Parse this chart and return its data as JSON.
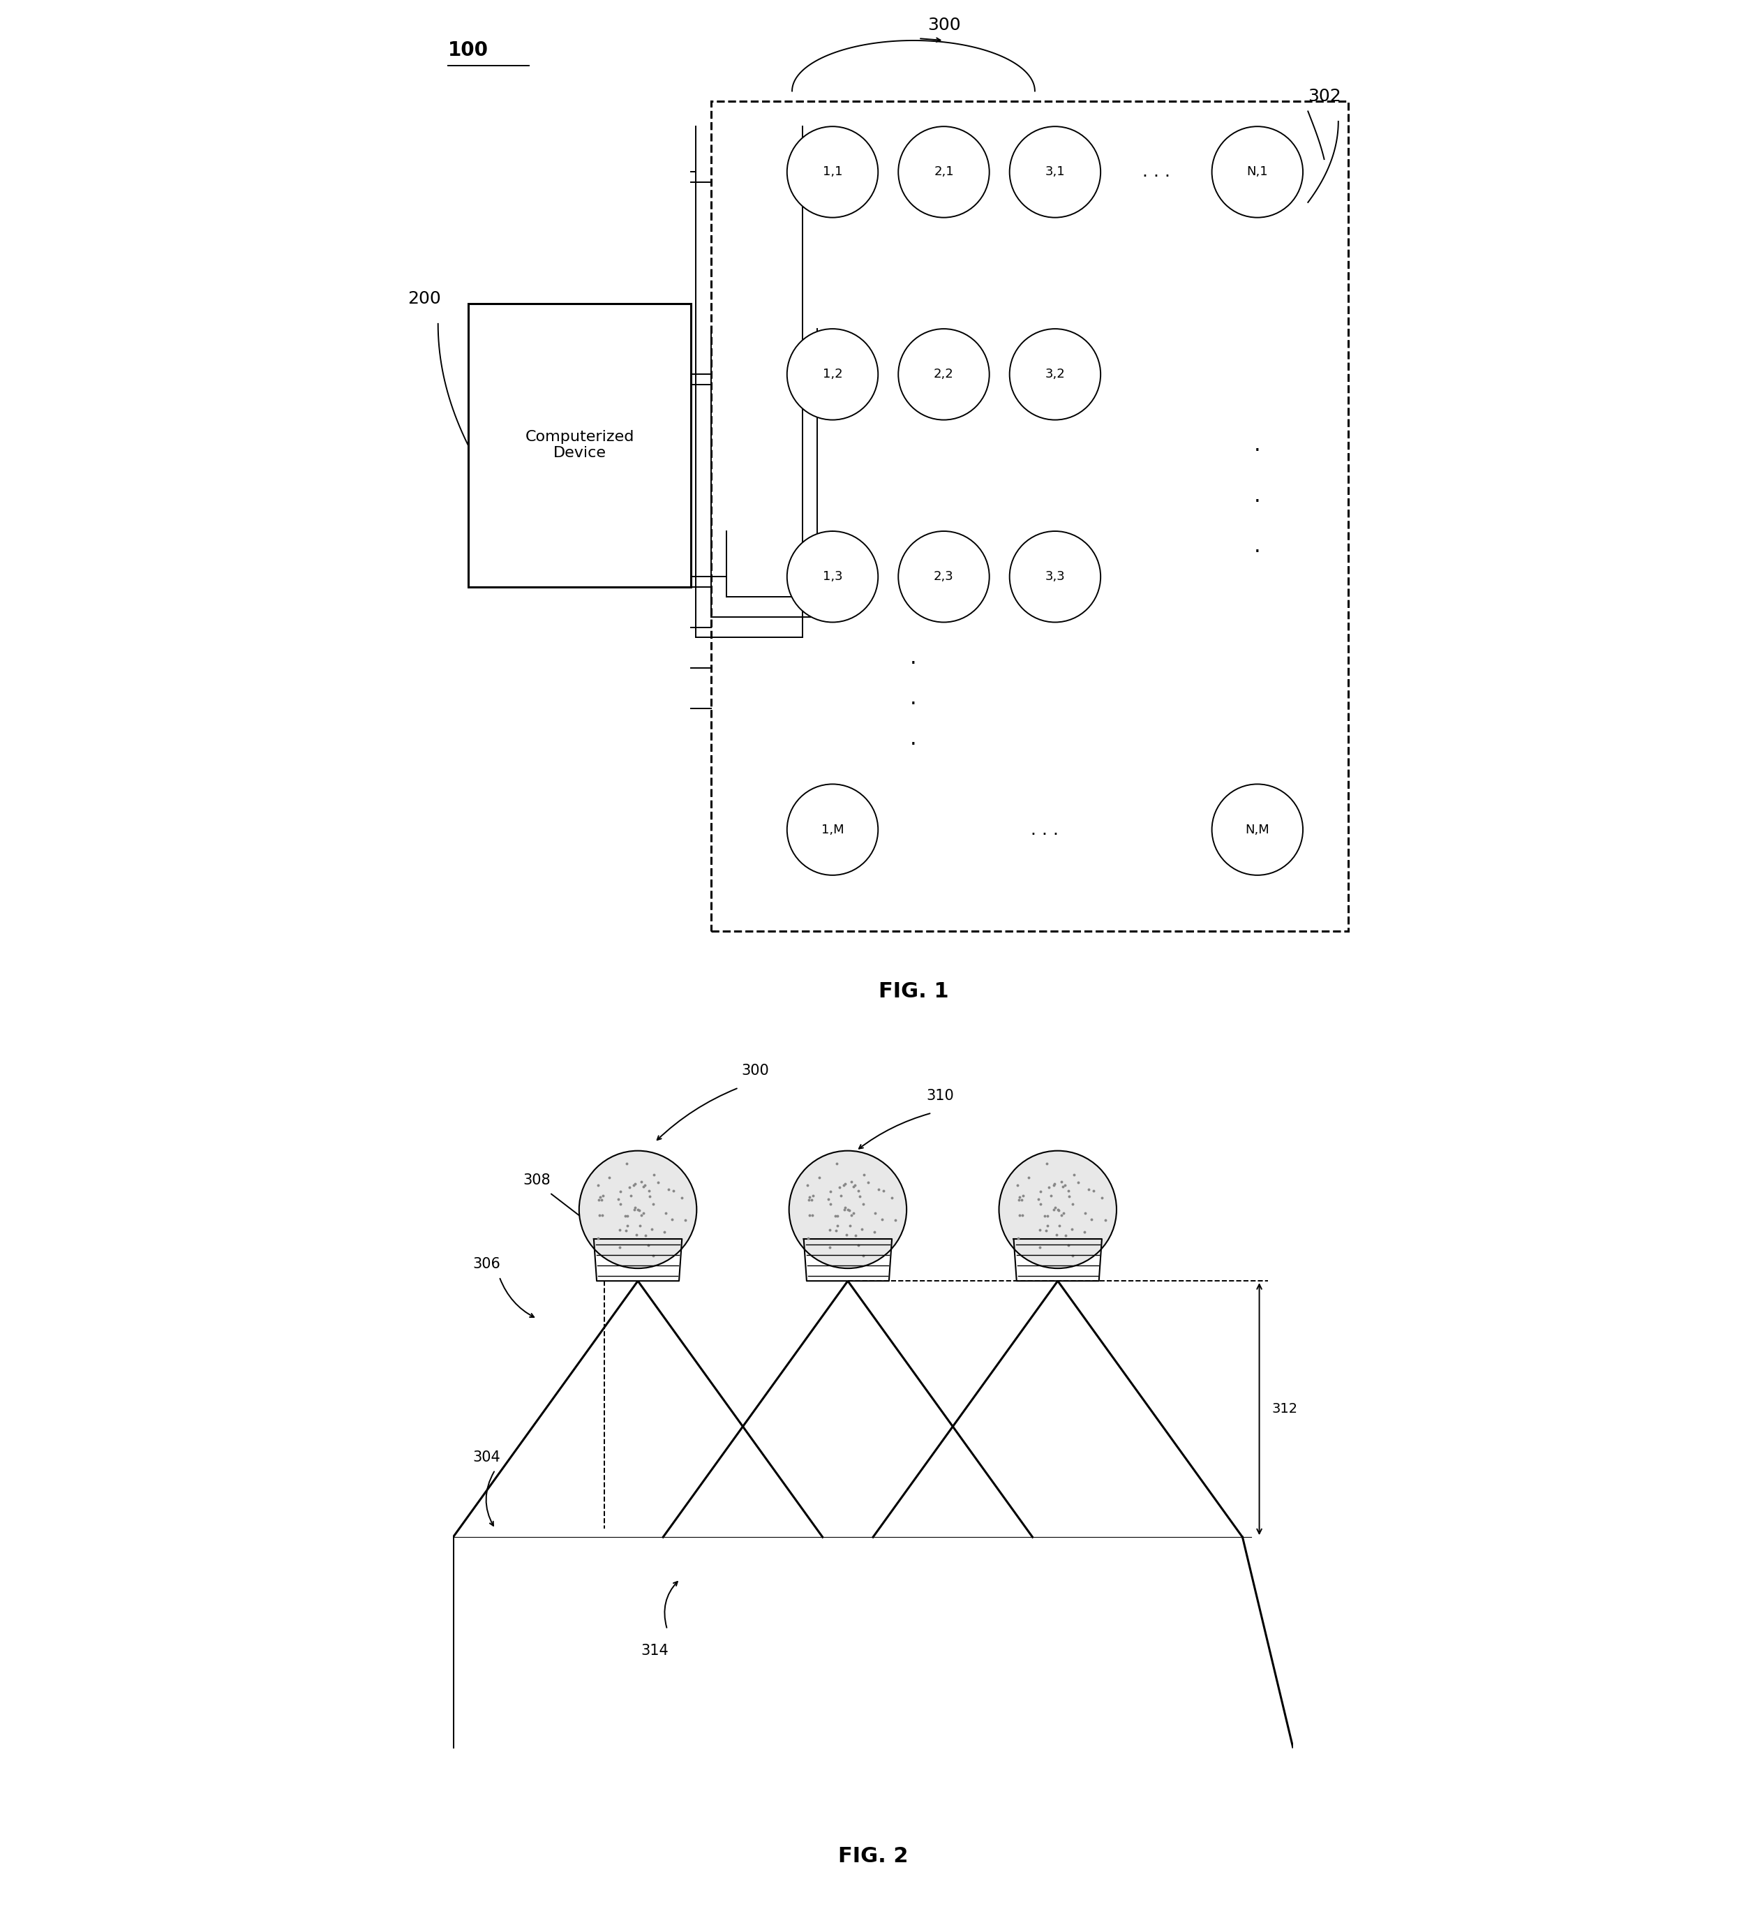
{
  "fig1": {
    "title": "FIG. 1",
    "label_100": "100",
    "label_200": "200",
    "label_300": "300",
    "label_302": "302",
    "device_text": "Computerized\nDevice"
  },
  "fig2": {
    "title": "FIG. 2",
    "label_300": "300",
    "label_304": "304",
    "label_306": "306",
    "label_308": "308",
    "label_310": "310",
    "label_312": "312",
    "label_314": "314"
  },
  "colors": {
    "black": "#000000",
    "white": "#ffffff",
    "bg": "#ffffff"
  }
}
